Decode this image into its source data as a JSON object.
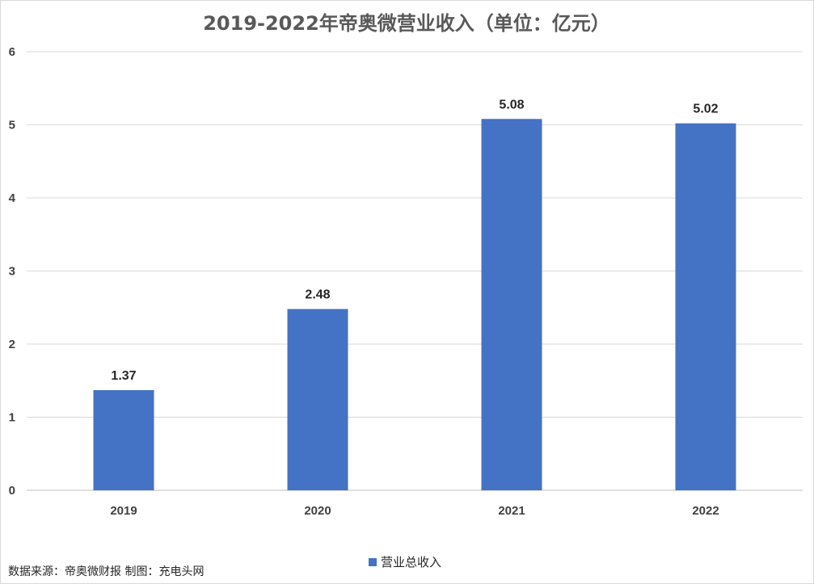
{
  "chart_data": {
    "type": "bar",
    "title": "2019-2022年帝奥微营业收入（单位：亿元）",
    "categories": [
      "2019",
      "2020",
      "2021",
      "2022"
    ],
    "series": [
      {
        "name": "营业总收入",
        "values": [
          1.37,
          2.48,
          5.08,
          5.02
        ]
      }
    ],
    "data_labels": [
      "1.37",
      "2.48",
      "5.08",
      "5.02"
    ],
    "ylim": [
      0,
      6
    ],
    "yticks": [
      0,
      1,
      2,
      3,
      4,
      5,
      6
    ],
    "grid": true,
    "legend_position": "bottom",
    "bar_color": "#4472C4"
  },
  "source_note": "数据来源：帝奥微财报  制图：充电头网"
}
